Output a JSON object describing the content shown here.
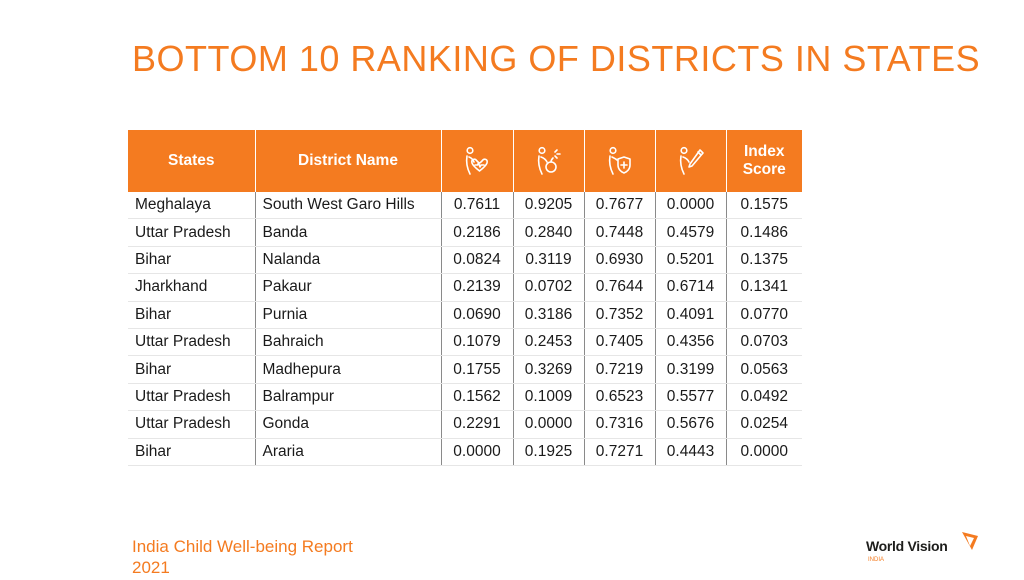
{
  "title": "BOTTOM 10 RANKING OF DISTRICTS IN STATES",
  "table": {
    "headers": {
      "states": "States",
      "district": "District Name",
      "icon1": "health-heart-icon",
      "icon2": "nutrition-icon",
      "icon3": "protection-shield-icon",
      "icon4": "education-pencil-icon",
      "index_line1": "Index",
      "index_line2": "Score"
    },
    "rows": [
      {
        "state": "Meghalaya",
        "district": "South West Garo Hills",
        "v1": "0.7611",
        "v2": "0.9205",
        "v3": "0.7677",
        "v4": "0.0000",
        "score": "0.1575"
      },
      {
        "state": "Uttar Pradesh",
        "district": "Banda",
        "v1": "0.2186",
        "v2": "0.2840",
        "v3": "0.7448",
        "v4": "0.4579",
        "score": "0.1486"
      },
      {
        "state": "Bihar",
        "district": "Nalanda",
        "v1": "0.0824",
        "v2": "0.3119",
        "v3": "0.6930",
        "v4": "0.5201",
        "score": "0.1375"
      },
      {
        "state": "Jharkhand",
        "district": "Pakaur",
        "v1": "0.2139",
        "v2": "0.0702",
        "v3": "0.7644",
        "v4": "0.6714",
        "score": "0.1341"
      },
      {
        "state": "Bihar",
        "district": "Purnia",
        "v1": "0.0690",
        "v2": "0.3186",
        "v3": "0.7352",
        "v4": "0.4091",
        "score": "0.0770"
      },
      {
        "state": "Uttar Pradesh",
        "district": "Bahraich",
        "v1": "0.1079",
        "v2": "0.2453",
        "v3": "0.7405",
        "v4": "0.4356",
        "score": "0.0703"
      },
      {
        "state": "Bihar",
        "district": "Madhepura",
        "v1": "0.1755",
        "v2": "0.3269",
        "v3": "0.7219",
        "v4": "0.3199",
        "score": "0.0563"
      },
      {
        "state": "Uttar Pradesh",
        "district": "Balrampur",
        "v1": "0.1562",
        "v2": "0.1009",
        "v3": "0.6523",
        "v4": "0.5577",
        "score": "0.0492"
      },
      {
        "state": "Uttar Pradesh",
        "district": "Gonda",
        "v1": "0.2291",
        "v2": "0.0000",
        "v3": "0.7316",
        "v4": "0.5676",
        "score": "0.0254"
      },
      {
        "state": "Bihar",
        "district": "Araria",
        "v1": "0.0000",
        "v2": "0.1925",
        "v3": "0.7271",
        "v4": "0.4443",
        "score": "0.0000"
      }
    ]
  },
  "footer": {
    "line1": "India Child Well-being Report",
    "line2": "2021"
  },
  "logo": {
    "name": "World Vision",
    "sub": "INDIA"
  },
  "colors": {
    "accent": "#f47b20",
    "header_text": "#ffffff",
    "body_text": "#1a1a1a"
  }
}
